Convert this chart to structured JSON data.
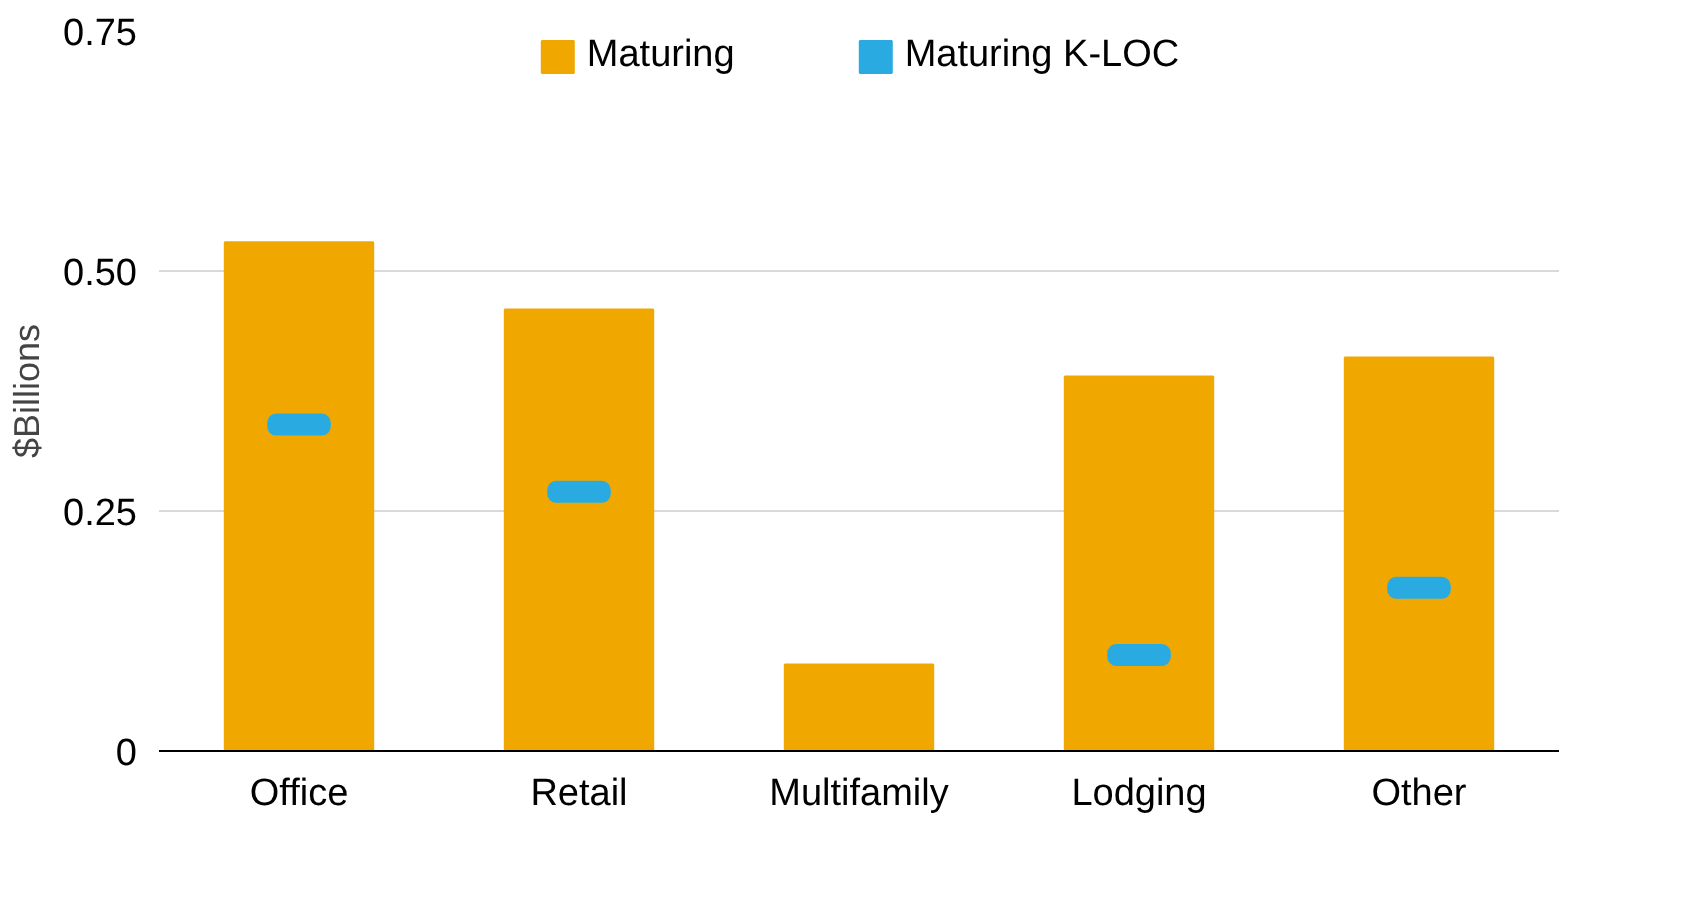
{
  "chart_data": {
    "type": "bar",
    "ylabel": "$Billions",
    "categories": [
      "Office",
      "Retail",
      "Multifamily",
      "Lodging",
      "Other"
    ],
    "series": [
      {
        "name": "Maturing",
        "color": "#f0a800",
        "values": [
          0.53,
          0.46,
          0.09,
          0.39,
          0.41
        ]
      },
      {
        "name": "Maturing K-LOC",
        "type": "scatter",
        "color": "#29abe2",
        "values": [
          0.34,
          0.27,
          null,
          0.1,
          0.17
        ]
      }
    ],
    "ylim": [
      0,
      0.75
    ],
    "yticks": [
      {
        "value": 0,
        "label": "0"
      },
      0.25,
      {
        "value": 0.5,
        "label": "0.50"
      },
      0.75
    ],
    "grid": "y",
    "legend": "top"
  }
}
